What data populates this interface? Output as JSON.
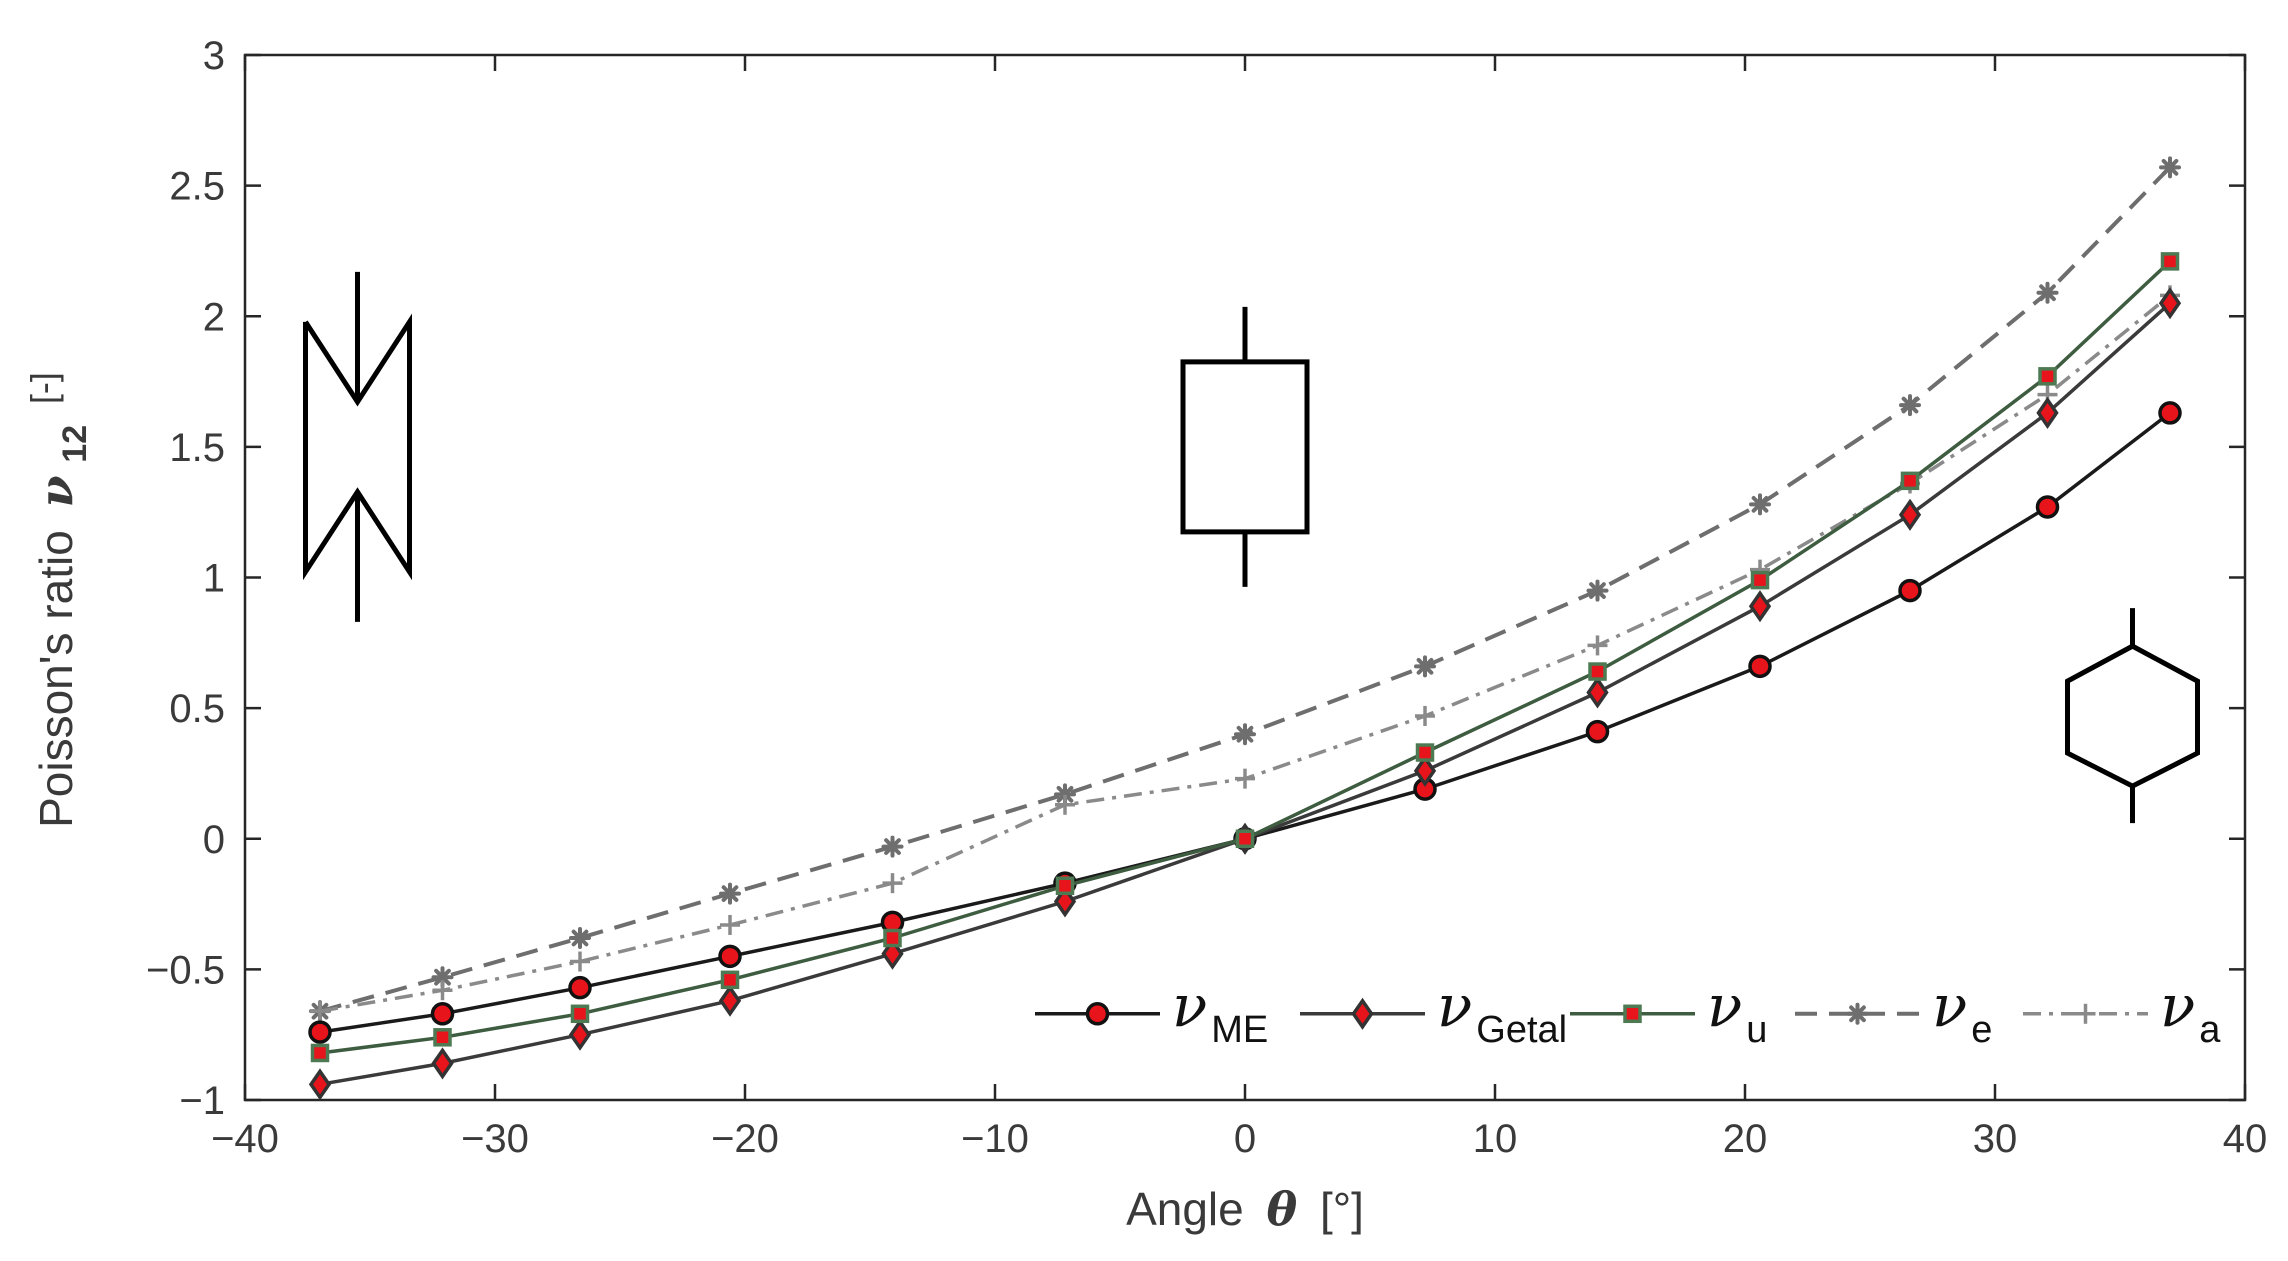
{
  "chart_data": {
    "type": "line",
    "xlabel": "Angle",
    "xlabel_symbol": "θ",
    "xlabel_unit": "[°]",
    "ylabel": "Poisson's ratio",
    "ylabel_symbol": "ν",
    "ylabel_subscript": "12",
    "ylabel_unit": "[-]",
    "xlim": [
      -40,
      40
    ],
    "ylim": [
      -1,
      3
    ],
    "xticks": [
      -40,
      -30,
      -20,
      -10,
      0,
      10,
      20,
      30,
      40
    ],
    "xtick_labels": [
      "−40",
      "−30",
      "−20",
      "−10",
      "0",
      "10",
      "20",
      "30",
      "40"
    ],
    "yticks": [
      -1,
      -0.5,
      0,
      0.5,
      1,
      1.5,
      2,
      2.5,
      3
    ],
    "ytick_labels": [
      "−1",
      "−0.5",
      "0",
      "0.5",
      "1",
      "1.5",
      "2",
      "2.5",
      "3"
    ],
    "grid": false,
    "legend_position": "bottom-right",
    "x": [
      -37,
      -32.1,
      -26.6,
      -20.6,
      -14.1,
      -7.2,
      0,
      7.2,
      14.1,
      20.6,
      26.6,
      32.1,
      37
    ],
    "series": [
      {
        "name": "ME",
        "symbol": "ν",
        "subscript": "ME",
        "color": "#1a1a1a",
        "marker": "circle",
        "line": "solid",
        "values": [
          -0.74,
          -0.67,
          -0.57,
          -0.45,
          -0.32,
          -0.17,
          0.0,
          0.19,
          0.41,
          0.66,
          0.95,
          1.27,
          1.63
        ]
      },
      {
        "name": "Getal",
        "symbol": "ν",
        "subscript": "Getal",
        "color": "#3a3a3a",
        "marker": "diamond",
        "line": "solid",
        "values": [
          -0.94,
          -0.86,
          -0.75,
          -0.62,
          -0.44,
          -0.24,
          0.0,
          0.26,
          0.56,
          0.89,
          1.24,
          1.63,
          2.05
        ]
      },
      {
        "name": "u",
        "symbol": "ν",
        "subscript": "u",
        "color": "#3d5c40",
        "marker": "square",
        "line": "solid",
        "values": [
          -0.82,
          -0.76,
          -0.67,
          -0.54,
          -0.38,
          -0.18,
          0.0,
          0.33,
          0.64,
          0.99,
          1.37,
          1.77,
          2.21
        ]
      },
      {
        "name": "e",
        "symbol": "ν",
        "subscript": "e",
        "color": "#6e6e6e",
        "marker": "asterisk",
        "line": "dashed",
        "values": [
          -0.66,
          -0.53,
          -0.38,
          -0.21,
          -0.03,
          0.17,
          0.4,
          0.66,
          0.95,
          1.28,
          1.66,
          2.09,
          2.57
        ]
      },
      {
        "name": "a",
        "symbol": "ν",
        "subscript": "a",
        "color": "#8a8a8a",
        "marker": "plus",
        "line": "dashdot",
        "values": [
          -0.66,
          -0.58,
          -0.47,
          -0.33,
          -0.17,
          0.13,
          0.23,
          0.47,
          0.74,
          1.03,
          1.36,
          1.7,
          2.08
        ]
      }
    ],
    "annotations": [
      {
        "name": "reentrant-cell-icon",
        "shape": "re-entrant (auxetic) cell",
        "x_data": -35.5,
        "y_data": 1.5
      },
      {
        "name": "rectangular-cell-icon",
        "shape": "rectangular cell",
        "x_data": 0,
        "y_data": 1.5
      },
      {
        "name": "hexagonal-cell-icon",
        "shape": "regular hexagonal cell",
        "x_data": 35.5,
        "y_data": 0.5
      }
    ],
    "marker_fill": "#e8141b"
  }
}
